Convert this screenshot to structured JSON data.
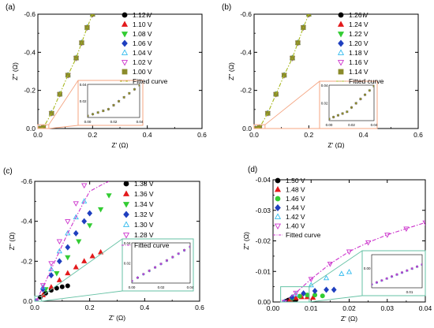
{
  "chart_data": [
    {
      "panel": "(a)",
      "type": "scatter",
      "xlabel": "Z' (Ω)",
      "ylabel": "Z'' (Ω)",
      "xlim": [
        0,
        0.6
      ],
      "ylim": [
        0,
        -0.6
      ],
      "xticks": [
        "0.0",
        "0.2",
        "0.4",
        "0.6"
      ],
      "yticks": [
        "0.0",
        "-0.2",
        "-0.4",
        "-0.6"
      ],
      "legend_position": "top-right",
      "series": [
        {
          "name": "1.12 V",
          "color": "#000000",
          "marker": "circle",
          "x": [
            0.005,
            0.02,
            0.05,
            0.08,
            0.11,
            0.14,
            0.16,
            0.18,
            0.2
          ],
          "y": [
            0,
            -0.005,
            -0.08,
            -0.18,
            -0.28,
            -0.37,
            -0.45,
            -0.53,
            -0.6
          ]
        },
        {
          "name": "1.10 V",
          "color": "#e31a1c",
          "marker": "triangle-up",
          "x": [
            0.005,
            0.02,
            0.05,
            0.08,
            0.11,
            0.14,
            0.16,
            0.18,
            0.2
          ],
          "y": [
            0,
            -0.005,
            -0.08,
            -0.18,
            -0.28,
            -0.37,
            -0.45,
            -0.53,
            -0.6
          ]
        },
        {
          "name": "1.08 V",
          "color": "#33cc33",
          "marker": "triangle-down",
          "x": [
            0.005,
            0.02,
            0.05,
            0.08,
            0.11,
            0.14,
            0.16,
            0.18,
            0.2
          ],
          "y": [
            0,
            -0.005,
            -0.08,
            -0.18,
            -0.28,
            -0.37,
            -0.45,
            -0.53,
            -0.6
          ]
        },
        {
          "name": "1.06 V",
          "color": "#1f3fbf",
          "marker": "diamond",
          "x": [
            0.005,
            0.02,
            0.05,
            0.08,
            0.11,
            0.14,
            0.16,
            0.18,
            0.2
          ],
          "y": [
            0,
            -0.005,
            -0.08,
            -0.18,
            -0.28,
            -0.37,
            -0.45,
            -0.53,
            -0.6
          ]
        },
        {
          "name": "1.04 V",
          "color": "#33bbee",
          "marker": "triangle-up-open",
          "x": [
            0.005,
            0.02,
            0.05,
            0.08,
            0.11,
            0.14,
            0.16,
            0.18,
            0.2
          ],
          "y": [
            0,
            -0.005,
            -0.08,
            -0.18,
            -0.28,
            -0.37,
            -0.45,
            -0.53,
            -0.6
          ]
        },
        {
          "name": "1.02 V",
          "color": "#cc33cc",
          "marker": "triangle-down-open",
          "x": [
            0.005,
            0.02,
            0.05,
            0.08,
            0.11,
            0.14,
            0.16,
            0.18,
            0.2
          ],
          "y": [
            0,
            -0.005,
            -0.08,
            -0.18,
            -0.28,
            -0.37,
            -0.45,
            -0.53,
            -0.6
          ]
        },
        {
          "name": "1.00 V",
          "color": "#8b8b2b",
          "marker": "square",
          "x": [
            0.005,
            0.02,
            0.05,
            0.08,
            0.11,
            0.14,
            0.16,
            0.18,
            0.2
          ],
          "y": [
            0,
            -0.005,
            -0.08,
            -0.18,
            -0.28,
            -0.37,
            -0.45,
            -0.53,
            -0.6
          ]
        },
        {
          "name": "Fitted curve",
          "color": "#a8b820",
          "marker": "dashdot-line",
          "x": [
            0.005,
            0.02,
            0.05,
            0.08,
            0.11,
            0.14,
            0.16,
            0.18,
            0.2
          ],
          "y": [
            0,
            -0.005,
            -0.08,
            -0.18,
            -0.28,
            -0.37,
            -0.45,
            -0.53,
            -0.6
          ]
        }
      ],
      "inset": {
        "xlim": [
          0,
          0.04
        ],
        "ylim": [
          0,
          0.04
        ],
        "xticks": [
          "0.00",
          "0.02",
          "0.04"
        ],
        "yticks": [
          "0.02",
          "0.04"
        ],
        "box_color": "#f4a582"
      }
    },
    {
      "panel": "(b)",
      "type": "scatter",
      "xlabel": "Z' (Ω)",
      "ylabel": "Z'' (Ω)",
      "xlim": [
        0,
        0.6
      ],
      "ylim": [
        0,
        -0.6
      ],
      "xticks": [
        "0.0",
        "0.2",
        "0.4",
        "0.6"
      ],
      "yticks": [
        "0.0",
        "-0.2",
        "-0.4",
        "-0.6"
      ],
      "legend_position": "top-right",
      "series": [
        {
          "name": "1.26 V",
          "color": "#000000",
          "marker": "circle",
          "x": [
            0.005,
            0.02,
            0.05,
            0.08,
            0.11,
            0.14,
            0.16,
            0.18,
            0.2
          ],
          "y": [
            0,
            -0.005,
            -0.08,
            -0.18,
            -0.28,
            -0.37,
            -0.45,
            -0.53,
            -0.6
          ]
        },
        {
          "name": "1.24 V",
          "color": "#e31a1c",
          "marker": "triangle-up",
          "x": [
            0.005,
            0.02,
            0.05,
            0.08,
            0.11,
            0.14,
            0.16,
            0.18,
            0.2
          ],
          "y": [
            0,
            -0.005,
            -0.08,
            -0.18,
            -0.28,
            -0.37,
            -0.45,
            -0.53,
            -0.6
          ]
        },
        {
          "name": "1.22 V",
          "color": "#33cc33",
          "marker": "triangle-down",
          "x": [
            0.005,
            0.02,
            0.05,
            0.08,
            0.11,
            0.14,
            0.16,
            0.18,
            0.2
          ],
          "y": [
            0,
            -0.005,
            -0.08,
            -0.18,
            -0.28,
            -0.37,
            -0.45,
            -0.53,
            -0.6
          ]
        },
        {
          "name": "1.20 V",
          "color": "#1f3fbf",
          "marker": "diamond",
          "x": [
            0.005,
            0.02,
            0.05,
            0.08,
            0.11,
            0.14,
            0.16,
            0.18,
            0.2
          ],
          "y": [
            0,
            -0.005,
            -0.08,
            -0.18,
            -0.28,
            -0.37,
            -0.45,
            -0.53,
            -0.6
          ]
        },
        {
          "name": "1.18 V",
          "color": "#33bbee",
          "marker": "triangle-up-open",
          "x": [
            0.005,
            0.02,
            0.05,
            0.08,
            0.11,
            0.14,
            0.16,
            0.18,
            0.2
          ],
          "y": [
            0,
            -0.005,
            -0.08,
            -0.18,
            -0.28,
            -0.37,
            -0.45,
            -0.53,
            -0.6
          ]
        },
        {
          "name": "1.16 V",
          "color": "#cc33cc",
          "marker": "triangle-down-open",
          "x": [
            0.005,
            0.02,
            0.05,
            0.08,
            0.11,
            0.14,
            0.16,
            0.18,
            0.2
          ],
          "y": [
            0,
            -0.005,
            -0.08,
            -0.18,
            -0.28,
            -0.37,
            -0.45,
            -0.53,
            -0.6
          ]
        },
        {
          "name": "1.14 V",
          "color": "#8b8b2b",
          "marker": "square",
          "x": [
            0.005,
            0.02,
            0.05,
            0.08,
            0.11,
            0.14,
            0.16,
            0.18,
            0.2
          ],
          "y": [
            0,
            -0.005,
            -0.08,
            -0.18,
            -0.28,
            -0.37,
            -0.45,
            -0.53,
            -0.6
          ]
        },
        {
          "name": "Fitted curve",
          "color": "#a8b820",
          "marker": "dashdot-line",
          "x": [
            0.005,
            0.02,
            0.05,
            0.08,
            0.11,
            0.14,
            0.16,
            0.18,
            0.2
          ],
          "y": [
            0,
            -0.005,
            -0.08,
            -0.18,
            -0.28,
            -0.37,
            -0.45,
            -0.53,
            -0.6
          ]
        }
      ],
      "inset": {
        "xlim": [
          0,
          0.04
        ],
        "ylim": [
          0,
          0.04
        ],
        "xticks": [
          "0.00",
          "0.02",
          "0.04"
        ],
        "yticks": [
          "0.02",
          "0.04"
        ],
        "box_color": "#f4a582"
      }
    },
    {
      "panel": "(c)",
      "type": "scatter",
      "xlabel": "Z' (Ω)",
      "ylabel": "Z'' (Ω)",
      "xlim": [
        0,
        0.6
      ],
      "ylim": [
        0,
        -0.6
      ],
      "xticks": [
        "0.0",
        "0.2",
        "0.4",
        "0.6"
      ],
      "yticks": [
        "0.0",
        "-0.2",
        "-0.4",
        "-0.6"
      ],
      "legend_position": "top-right",
      "series": [
        {
          "name": "1.38 V",
          "color": "#000000",
          "marker": "circle",
          "x": [
            0.005,
            0.02,
            0.04,
            0.06,
            0.08,
            0.1,
            0.12
          ],
          "y": [
            0,
            -0.02,
            -0.04,
            -0.055,
            -0.065,
            -0.072,
            -0.077
          ]
        },
        {
          "name": "1.36 V",
          "color": "#e31a1c",
          "marker": "triangle-up",
          "x": [
            0.005,
            0.03,
            0.06,
            0.09,
            0.12,
            0.15,
            0.18,
            0.21,
            0.24
          ],
          "y": [
            0,
            -0.03,
            -0.07,
            -0.105,
            -0.14,
            -0.17,
            -0.2,
            -0.225,
            -0.245
          ]
        },
        {
          "name": "1.34 V",
          "color": "#33cc33",
          "marker": "triangle-down",
          "x": [
            0.005,
            0.04,
            0.08,
            0.12,
            0.16,
            0.2,
            0.24,
            0.27
          ],
          "y": [
            0,
            -0.06,
            -0.14,
            -0.22,
            -0.3,
            -0.38,
            -0.46,
            -0.53
          ]
        },
        {
          "name": "1.32 V",
          "color": "#1f3fbf",
          "marker": "diamond",
          "x": [
            0.005,
            0.03,
            0.06,
            0.09,
            0.12,
            0.15,
            0.18,
            0.2
          ],
          "y": [
            0,
            -0.06,
            -0.13,
            -0.2,
            -0.27,
            -0.34,
            -0.4,
            -0.44
          ]
        },
        {
          "name": "1.30 V",
          "color": "#33bbee",
          "marker": "triangle-up-open",
          "x": [
            0.005,
            0.03,
            0.06,
            0.09,
            0.12,
            0.15,
            0.18
          ],
          "y": [
            0,
            -0.07,
            -0.16,
            -0.25,
            -0.34,
            -0.42,
            -0.5
          ]
        },
        {
          "name": "1.28 V",
          "color": "#cc33cc",
          "marker": "triangle-down-open",
          "x": [
            0.005,
            0.03,
            0.06,
            0.09,
            0.12,
            0.15,
            0.18
          ],
          "y": [
            0,
            -0.08,
            -0.19,
            -0.3,
            -0.4,
            -0.49,
            -0.58
          ]
        },
        {
          "name": "Fitted curve",
          "color": "#cc33cc",
          "marker": "dashdot-line",
          "x": [
            0.005,
            0.03,
            0.06,
            0.09,
            0.12,
            0.15,
            0.18,
            0.2,
            0.24,
            0.27
          ],
          "y": [
            0,
            -0.07,
            -0.16,
            -0.25,
            -0.34,
            -0.42,
            -0.5,
            -0.55,
            -0.58,
            -0.6
          ]
        }
      ],
      "inset": {
        "xlim": [
          0,
          0.04
        ],
        "ylim": [
          0,
          0.04
        ],
        "xticks": [
          "0.00",
          "0.02",
          "0.04"
        ],
        "yticks": [
          "0.02",
          "0.04"
        ],
        "box_color": "#66c2a5"
      }
    },
    {
      "panel": "(d)",
      "type": "scatter",
      "xlabel": "Z' (Ω)",
      "ylabel": "Z'' (Ω)",
      "xlim": [
        0,
        0.04
      ],
      "ylim": [
        0,
        -0.04
      ],
      "xticks": [
        "0.00",
        "0.01",
        "0.02",
        "0.03",
        "0.04"
      ],
      "yticks": [
        "0.00",
        "-0.01",
        "-0.02",
        "-0.03",
        "-0.04"
      ],
      "legend_position": "top-left",
      "series": [
        {
          "name": "1.50 V",
          "color": "#000000",
          "marker": "circle",
          "x": [
            0.003,
            0.0035,
            0.004,
            0.0045,
            0.005,
            0.0055,
            0.006
          ],
          "y": [
            0,
            -0.0003,
            -0.0006,
            -0.0008,
            -0.0009,
            -0.0008,
            -0.0007
          ]
        },
        {
          "name": "1.48 V",
          "color": "#e31a1c",
          "marker": "triangle-up",
          "x": [
            0.003,
            0.0045,
            0.006,
            0.0075,
            0.009,
            0.0105
          ],
          "y": [
            0,
            -0.0008,
            -0.0013,
            -0.0016,
            -0.0016,
            -0.0014
          ]
        },
        {
          "name": "1.46 V",
          "color": "#33cc33",
          "marker": "circle",
          "x": [
            0.003,
            0.005,
            0.007,
            0.009,
            0.011,
            0.013
          ],
          "y": [
            0,
            -0.0012,
            -0.0019,
            -0.0023,
            -0.0023,
            -0.002
          ]
        },
        {
          "name": "1.44 V",
          "color": "#1f3fbf",
          "marker": "diamond",
          "x": [
            0.003,
            0.005,
            0.008,
            0.011,
            0.014,
            0.016
          ],
          "y": [
            0,
            -0.0015,
            -0.0028,
            -0.0036,
            -0.004,
            -0.004
          ]
        },
        {
          "name": "1.42 V",
          "color": "#33bbee",
          "marker": "triangle-up-open",
          "x": [
            0.003,
            0.006,
            0.01,
            0.014,
            0.018,
            0.02
          ],
          "y": [
            0,
            -0.0025,
            -0.0055,
            -0.0078,
            -0.0092,
            -0.0098
          ]
        },
        {
          "name": "1.40 V",
          "color": "#cc33cc",
          "marker": "triangle-down-open",
          "x": [
            0.003,
            0.006,
            0.01,
            0.015,
            0.02,
            0.025,
            0.03,
            0.035,
            0.04
          ],
          "y": [
            0,
            -0.003,
            -0.0075,
            -0.0125,
            -0.0165,
            -0.0195,
            -0.022,
            -0.024,
            -0.026
          ]
        },
        {
          "name": "Fitted curve",
          "color": "#cc33cc",
          "marker": "dashdot-line",
          "x": [
            0.003,
            0.006,
            0.01,
            0.015,
            0.02,
            0.025,
            0.03,
            0.035,
            0.04
          ],
          "y": [
            0,
            -0.003,
            -0.0075,
            -0.0125,
            -0.0165,
            -0.0195,
            -0.022,
            -0.024,
            -0.026
          ]
        }
      ],
      "inset": {
        "xlim": [
          0,
          0.01
        ],
        "ylim": [
          0,
          -0.001
        ],
        "xticks": [
          "0.01"
        ],
        "yticks": [
          "0.00"
        ],
        "box_color": "#66c2a5"
      }
    }
  ]
}
